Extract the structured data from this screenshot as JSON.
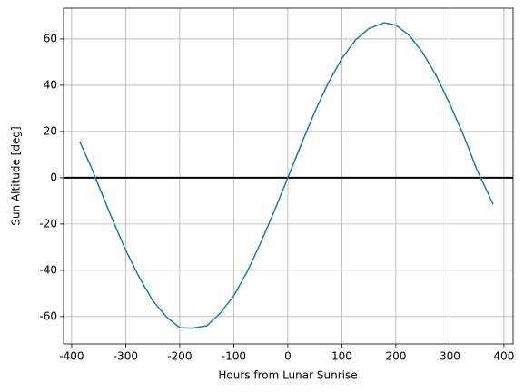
{
  "chart_data": {
    "type": "line",
    "xlabel": "Hours from Lunar Sunrise",
    "ylabel": "Sun Altitude [deg]",
    "x": [
      -385,
      -365,
      -350,
      -325,
      -300,
      -275,
      -250,
      -225,
      -200,
      -178,
      -150,
      -125,
      -100,
      -75,
      -50,
      -25,
      0,
      25,
      50,
      75,
      100,
      125,
      150,
      178,
      200,
      225,
      250,
      275,
      300,
      325,
      350,
      380
    ],
    "series": [
      {
        "name": "Sun Altitude",
        "color": "#1f77b4",
        "values": [
          15.6,
          5.2,
          -3.5,
          -17.8,
          -31.3,
          -43,
          -53.1,
          -60,
          -64.8,
          -65,
          -64,
          -58.5,
          -51,
          -40.5,
          -28,
          -14.4,
          0,
          14.5,
          28.5,
          41,
          51.5,
          59.5,
          64.5,
          67,
          66,
          61.5,
          54,
          44,
          31.8,
          18.5,
          3.5,
          -11.5
        ]
      }
    ],
    "hline": 0,
    "xlim": [
      -415,
      417
    ],
    "ylim": [
      -71.8,
      73.3
    ],
    "xticks": [
      -400,
      -300,
      -200,
      -100,
      0,
      100,
      200,
      300,
      400
    ],
    "yticks": [
      -60,
      -40,
      -20,
      0,
      20,
      40,
      60
    ],
    "grid": true
  }
}
